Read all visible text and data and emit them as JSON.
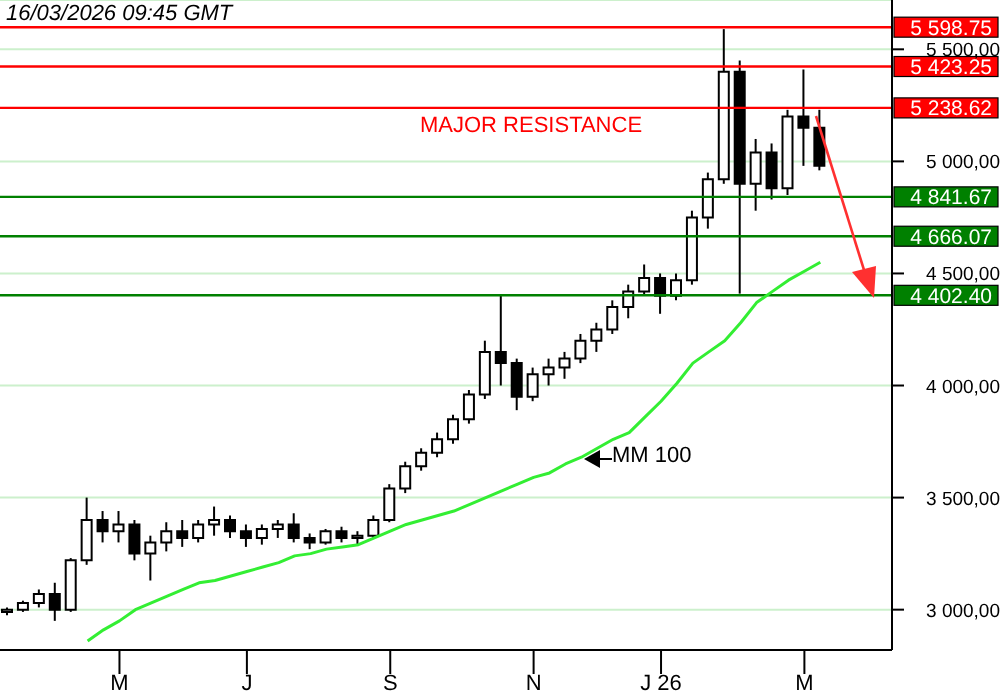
{
  "chart_data": {
    "type": "candlestick",
    "annotations": [
      "16/03/2026  09:45 GMT",
      "MAJOR RESISTANCE",
      "MM 100"
    ],
    "categories": [
      null,
      null,
      null,
      null,
      null,
      null,
      null,
      "M",
      null,
      null,
      null,
      null,
      null,
      null,
      null,
      "J",
      null,
      null,
      null,
      null,
      null,
      null,
      null,
      null,
      "S",
      null,
      null,
      null,
      null,
      null,
      null,
      null,
      null,
      "N",
      null,
      null,
      null,
      null,
      null,
      null,
      null,
      "J 26",
      null,
      null,
      null,
      null,
      null,
      null,
      null,
      null,
      "M",
      null,
      null,
      null,
      null,
      null
    ],
    "ohlc": [
      [
        2990,
        3010,
        2975,
        3000
      ],
      [
        3000,
        3040,
        2990,
        3030
      ],
      [
        3030,
        3090,
        3010,
        3070
      ],
      [
        3070,
        3120,
        2950,
        3000
      ],
      [
        3000,
        3230,
        2990,
        3220
      ],
      [
        3220,
        3500,
        3200,
        3400
      ],
      [
        3400,
        3440,
        3300,
        3350
      ],
      [
        3350,
        3440,
        3300,
        3380
      ],
      [
        3380,
        3400,
        3220,
        3250
      ],
      [
        3250,
        3330,
        3130,
        3300
      ],
      [
        3300,
        3390,
        3260,
        3350
      ],
      [
        3350,
        3400,
        3280,
        3320
      ],
      [
        3320,
        3400,
        3300,
        3380
      ],
      [
        3380,
        3460,
        3330,
        3400
      ],
      [
        3400,
        3420,
        3320,
        3350
      ],
      [
        3350,
        3380,
        3280,
        3320
      ],
      [
        3320,
        3380,
        3290,
        3360
      ],
      [
        3360,
        3400,
        3320,
        3380
      ],
      [
        3380,
        3430,
        3300,
        3320
      ],
      [
        3320,
        3340,
        3270,
        3300
      ],
      [
        3300,
        3360,
        3290,
        3350
      ],
      [
        3350,
        3370,
        3300,
        3320
      ],
      [
        3320,
        3350,
        3290,
        3330
      ],
      [
        3330,
        3420,
        3320,
        3400
      ],
      [
        3400,
        3560,
        3390,
        3540
      ],
      [
        3540,
        3660,
        3520,
        3640
      ],
      [
        3640,
        3720,
        3620,
        3700
      ],
      [
        3700,
        3790,
        3680,
        3760
      ],
      [
        3760,
        3870,
        3740,
        3850
      ],
      [
        3850,
        3980,
        3830,
        3960
      ],
      [
        3960,
        4200,
        3940,
        4150
      ],
      [
        4150,
        4400,
        4000,
        4100
      ],
      [
        4100,
        4120,
        3890,
        3950
      ],
      [
        3950,
        4080,
        3930,
        4050
      ],
      [
        4050,
        4120,
        4000,
        4080
      ],
      [
        4080,
        4150,
        4030,
        4120
      ],
      [
        4120,
        4230,
        4100,
        4200
      ],
      [
        4200,
        4280,
        4150,
        4250
      ],
      [
        4250,
        4380,
        4230,
        4350
      ],
      [
        4350,
        4450,
        4300,
        4420
      ],
      [
        4420,
        4540,
        4400,
        4480
      ],
      [
        4480,
        4500,
        4320,
        4400
      ],
      [
        4400,
        4500,
        4380,
        4470
      ],
      [
        4470,
        4780,
        4450,
        4750
      ],
      [
        4750,
        4950,
        4700,
        4920
      ],
      [
        4920,
        5590,
        4900,
        5400
      ],
      [
        5400,
        5450,
        4410,
        4900
      ],
      [
        4900,
        5100,
        4780,
        5040
      ],
      [
        5040,
        5080,
        4830,
        4880
      ],
      [
        4880,
        5230,
        4850,
        5200
      ],
      [
        5200,
        5410,
        4980,
        5150
      ],
      [
        5150,
        5230,
        4960,
        4980
      ],
      null,
      null,
      null,
      null
    ],
    "series": [
      {
        "type": "line",
        "color": "#33ee33",
        "values": [
          null,
          null,
          null,
          null,
          null,
          2860,
          2910,
          2950,
          3000,
          3030,
          3060,
          3090,
          3120,
          3130,
          3150,
          3170,
          3190,
          3210,
          3240,
          3250,
          3270,
          3280,
          3290,
          3320,
          3350,
          3380,
          3400,
          3420,
          3440,
          3470,
          3500,
          3530,
          3560,
          3590,
          3610,
          3650,
          3680,
          3720,
          3760,
          3790,
          3860,
          3930,
          4010,
          4100,
          4150,
          4200,
          4280,
          4370,
          4420,
          4470,
          4510,
          4550,
          null,
          null,
          null,
          null
        ]
      }
    ],
    "ref_lines": [
      {
        "axis": "y",
        "value": 5598.75,
        "color": "#ff0000",
        "label": "5 598.75"
      },
      {
        "axis": "y",
        "value": 5423.25,
        "color": "#ff0000",
        "label": "5 423.25"
      },
      {
        "axis": "y",
        "value": 5238.62,
        "color": "#ff0000",
        "label": "5 238.62"
      },
      {
        "axis": "y",
        "value": 4841.67,
        "color": "#008000",
        "label": "4 841.67"
      },
      {
        "axis": "y",
        "value": 4666.07,
        "color": "#008000",
        "label": "4 666.07"
      },
      {
        "axis": "y",
        "value": 4402.4,
        "color": "#008000",
        "label": "4 402.40"
      }
    ],
    "ylim": [
      2820,
      5720
    ],
    "yticks": [
      {
        "value": 3000,
        "label": "3 000,00"
      },
      {
        "value": 3500,
        "label": "3 500,00"
      },
      {
        "value": 4000,
        "label": "4 000,00"
      },
      {
        "value": 4500,
        "label": "4 500,00"
      },
      {
        "value": 5000,
        "label": "5 000,00"
      },
      {
        "value": 5500,
        "label": "5 500,00"
      }
    ],
    "grid": "y",
    "marker": "none"
  }
}
